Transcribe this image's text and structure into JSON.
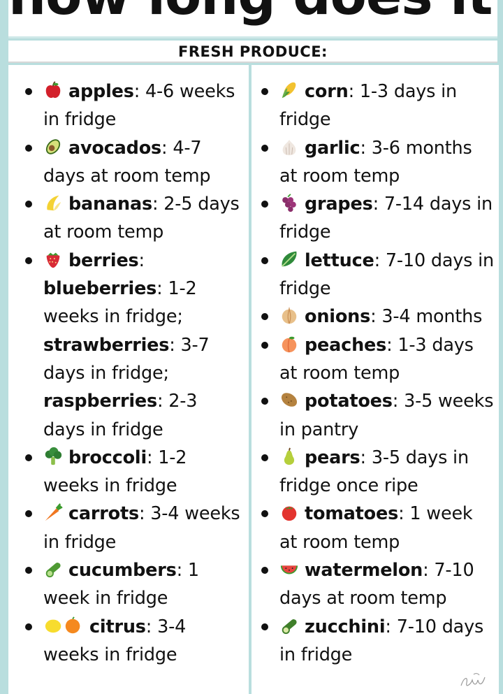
{
  "header": {
    "title": "how long does it last?"
  },
  "section": {
    "title": "FRESH PRODUCE:"
  },
  "left_items": [
    {
      "icon": "apple-icon",
      "name": "apples",
      "text": ": 4-6 weeks in fridge"
    },
    {
      "icon": "avocado-icon",
      "name": "avocados",
      "text": ": 4-7 days at room temp"
    },
    {
      "icon": "banana-icon",
      "name": "bananas",
      "text": ": 2-5 days at room temp"
    },
    {
      "icon": "strawberry-icon",
      "name": "berries",
      "text": ":",
      "sub": [
        {
          "name": "blueberries",
          "text": ": 1-2 weeks in fridge;"
        },
        {
          "name": "strawberries",
          "text": ": 3-7 days in fridge;"
        },
        {
          "name": "raspberries",
          "text": ": 2-3 days in fridge"
        }
      ]
    },
    {
      "icon": "broccoli-icon",
      "name": "broccoli",
      "text": ": 1-2 weeks in fridge"
    },
    {
      "icon": "carrot-icon",
      "name": "carrots",
      "text": ": 3-4 weeks in fridge"
    },
    {
      "icon": "cucumber-icon",
      "name": "cucumbers",
      "text": ": 1 week in fridge"
    },
    {
      "icon": "lemon-orange-icon",
      "name": "citrus",
      "text": ": 3-4 weeks in fridge"
    }
  ],
  "right_items": [
    {
      "icon": "corn-icon",
      "name": "corn",
      "text": ": 1-3 days in fridge"
    },
    {
      "icon": "garlic-icon",
      "name": "garlic",
      "text": ": 3-6 months at room temp"
    },
    {
      "icon": "grapes-icon",
      "name": "grapes",
      "text": ": 7-14 days in fridge"
    },
    {
      "icon": "lettuce-icon",
      "name": "lettuce",
      "text": ": 7-10 days in fridge"
    },
    {
      "icon": "onion-icon",
      "name": "onions",
      "text": ": 3-4 months"
    },
    {
      "icon": "peach-icon",
      "name": "peaches",
      "text": ": 1-3 days at room temp"
    },
    {
      "icon": "potato-icon",
      "name": "potatoes",
      "text": ": 3-5 weeks in pantry"
    },
    {
      "icon": "pear-icon",
      "name": "pears",
      "text": ": 3-5 days in fridge once ripe"
    },
    {
      "icon": "tomato-icon",
      "name": "tomatoes",
      "text": ": 1 week at room temp"
    },
    {
      "icon": "watermelon-icon",
      "name": "watermelon",
      "text": ": 7-10 days at room temp"
    },
    {
      "icon": "zucchini-icon",
      "name": "zucchini",
      "text": ": 7-10 days in fridge"
    }
  ],
  "colors": {
    "background": "#b9dede",
    "panel": "#ffffff",
    "text": "#111111"
  },
  "signature": "The Kitchn"
}
